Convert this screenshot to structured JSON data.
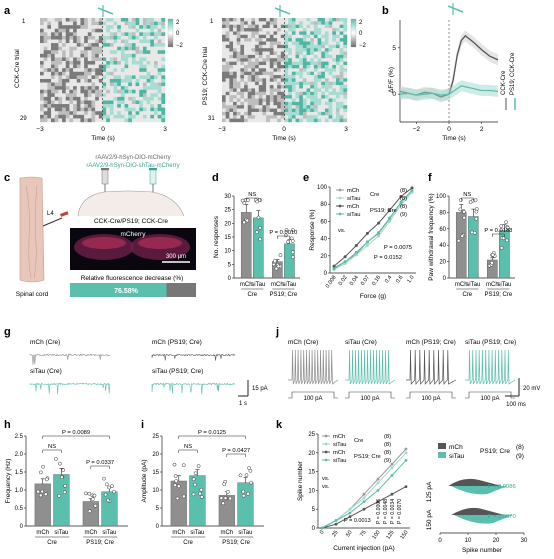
{
  "colors": {
    "grey": "#8f8f8f",
    "teal": "#5bbfae",
    "dark": "#555555",
    "lightteal": "#9ed8cc"
  },
  "panel_letters": [
    "a",
    "b",
    "c",
    "d",
    "e",
    "f",
    "g",
    "h",
    "i",
    "j",
    "k"
  ],
  "a": {
    "left_trial": "CCK-Cre trial",
    "right_trial": "PS19; CCK-Cre trial",
    "left_rows": [
      "1",
      "29"
    ],
    "right_rows": [
      "1",
      "31"
    ],
    "xticks": [
      "−3",
      "0",
      "3"
    ],
    "xlabel": "Time (s)",
    "colorbar": [
      "2",
      "0",
      "−2"
    ]
  },
  "b": {
    "ylabel": "ΔF/F (%)",
    "yticks": [
      "5",
      "0"
    ],
    "xticks": [
      "−2",
      "0",
      "2"
    ],
    "xlabel": "Time (s)",
    "legend": [
      "CCK-Cre",
      "PS19; CCK-Cre"
    ],
    "chart_data": {
      "type": "line",
      "x": [
        -3,
        -2.5,
        -2,
        -1.5,
        -1,
        -0.5,
        0,
        0.25,
        0.5,
        0.75,
        1,
        1.5,
        2,
        2.5,
        3
      ],
      "series": [
        {
          "name": "CCK-Cre",
          "values": [
            0.3,
            0.1,
            -0.1,
            0.2,
            0.1,
            -0.3,
            0,
            1.5,
            4.2,
            5.8,
            6.3,
            5.6,
            4.8,
            4.1,
            3.7
          ]
        },
        {
          "name": "PS19; CCK-Cre",
          "values": [
            0,
            0.1,
            -0.1,
            0,
            0.1,
            -0.1,
            0,
            0.3,
            0.6,
            0.9,
            0.8,
            0.6,
            0.4,
            0.4,
            0.3
          ]
        }
      ]
    }
  },
  "c": {
    "virus1": "rAAV2/9-hSyn-DIO-mCherry",
    "virus2": "rAAV2/9-hSyn-DIO-shTau-mCherry",
    "mouse": "CCK-Cre/PS19; CCK-Cre",
    "layer": "L4",
    "tissue": "Spinal cord",
    "image_label": "mCherry",
    "scale": "300 μm",
    "bar_title": "Relative fluorescence decrease (%)",
    "bar_value": "76.58%",
    "bar_fraction": 0.7658
  },
  "d": {
    "ylabel": "No. responses",
    "yticks": [
      "0",
      "5",
      "10",
      "15",
      "20",
      "25",
      "30"
    ],
    "ns": "NS",
    "p": "P = 0.0010",
    "xlabels": [
      "mCh",
      "siTau",
      "mCh",
      "siTau"
    ],
    "groups": [
      "Cre",
      "PS19; Cre"
    ],
    "chart_data": {
      "type": "bar",
      "categories": [
        "mCh Cre",
        "siTau Cre",
        "mCh PS19; Cre",
        "siTau PS19; Cre"
      ],
      "values": [
        24,
        22,
        6,
        12.5
      ],
      "ylim": [
        0,
        30
      ]
    }
  },
  "e": {
    "ylabel": "Response (%)",
    "xlabel": "Force (g)",
    "yticks": [
      "0",
      "20",
      "40",
      "60",
      "80",
      "100"
    ],
    "xticks": [
      "0.008",
      "0.02",
      "0.04",
      "0.07",
      "0.16",
      "0.4",
      "0.6",
      "1.0"
    ],
    "legend": [
      "mCh",
      "siTau",
      "mCh",
      "siTau"
    ],
    "legend_groups": [
      "Cre",
      "PS19; Cre"
    ],
    "legend_n": [
      "(8)",
      "(8)",
      "(8)",
      "(9)"
    ],
    "vs": "vs.",
    "p1": "P = 0.0075",
    "p2": "P = 0.0152",
    "chart_data": {
      "type": "line",
      "categories": [
        "0.008",
        "0.02",
        "0.04",
        "0.07",
        "0.16",
        "0.4",
        "0.6",
        "1.0"
      ],
      "series": [
        {
          "name": "mCh Cre",
          "values": [
            6,
            13,
            22,
            36,
            46,
            63,
            82,
            96
          ]
        },
        {
          "name": "siTau Cre",
          "values": [
            4,
            11,
            21,
            32,
            43,
            60,
            79,
            94
          ]
        },
        {
          "name": "mCh PS19; Cre",
          "values": [
            8,
            19,
            32,
            46,
            58,
            73,
            89,
            99
          ]
        },
        {
          "name": "siTau PS19; Cre",
          "values": [
            5,
            13,
            24,
            36,
            47,
            64,
            82,
            96
          ]
        }
      ],
      "ylim": [
        0,
        100
      ]
    }
  },
  "f": {
    "ylabel": "Paw withdrawal frequency (%)",
    "yticks": [
      "0",
      "20",
      "40",
      "60",
      "80",
      "100"
    ],
    "ns": "NS",
    "p": "P = 0.0188",
    "xlabels": [
      "mCh",
      "siTau",
      "mCh",
      "siTau"
    ],
    "groups": [
      "Cre",
      "PS19; Cre"
    ],
    "chart_data": {
      "type": "bar",
      "categories": [
        "mCh Cre",
        "siTau Cre",
        "mCh PS19; Cre",
        "siTau PS19; Cre"
      ],
      "values": [
        80,
        75,
        22,
        58
      ],
      "ylim": [
        0,
        100
      ]
    }
  },
  "g": {
    "labels": [
      "mCh (Cre)",
      "mCh (PS19; Cre)",
      "siTau (Cre)",
      "siTau (PS19; Cre)"
    ],
    "scale_v": "15 pA",
    "scale_t": "1 s"
  },
  "h": {
    "ylabel": "Frequency (Hz)",
    "yticks": [
      "0",
      "0.5",
      "1.0",
      "1.5",
      "2.0",
      "2.5"
    ],
    "ns": "NS",
    "p1": "P = 0.0089",
    "p2": "P = 0.0337",
    "xlabels": [
      "mCh",
      "siTau",
      "mCh",
      "siTau"
    ],
    "groups": [
      "Cre",
      "PS19; Cre"
    ],
    "chart_data": {
      "type": "bar",
      "categories": [
        "mCh Cre",
        "siTau Cre",
        "mCh PS19; Cre",
        "siTau PS19; Cre"
      ],
      "values": [
        1.17,
        1.43,
        0.68,
        0.95
      ],
      "ylim": [
        0,
        2.5
      ]
    }
  },
  "i": {
    "ylabel": "Amplitude (pA)",
    "yticks": [
      "0",
      "5",
      "10",
      "15",
      "20",
      "25"
    ],
    "ns": "NS",
    "p1": "P = 0.0125",
    "p2": "P = 0.0427",
    "xlabels": [
      "mCh",
      "siTau",
      "mCh",
      "siTau"
    ],
    "groups": [
      "Cre",
      "PS19; Cre"
    ],
    "chart_data": {
      "type": "bar",
      "categories": [
        "mCh Cre",
        "siTau Cre",
        "mCh PS19; Cre",
        "siTau PS19; Cre"
      ],
      "values": [
        12.5,
        14,
        8.5,
        12
      ],
      "ylim": [
        0,
        25
      ]
    }
  },
  "j": {
    "labels": [
      "mCh (Cre)",
      "siTau (Cre)",
      "mCh (PS19; Cre)",
      "siTau (PS19; Cre)"
    ],
    "step": "100 pA",
    "scale_v": "20 mV",
    "scale_t": "100 ms"
  },
  "k": {
    "ylabel": "Spike number",
    "xlabel": "Current injection (pA)",
    "yticks": [
      "0",
      "5",
      "10",
      "15",
      "20",
      "25"
    ],
    "xticks": [
      "0",
      "25",
      "50",
      "75",
      "100",
      "125",
      "150"
    ],
    "legend": [
      "mCh",
      "siTau",
      "mCh",
      "siTau"
    ],
    "legend_groups": [
      "Cre",
      "PS19; Cre"
    ],
    "legend_n": [
      "(8)",
      "(8)",
      "(8)",
      "(9)"
    ],
    "vs": "vs.",
    "pvals": [
      "P = 0.0013",
      "P = 0.0006",
      "P = 0.0048",
      "P = 0.0034",
      "P = 0.0070"
    ],
    "chart_data": {
      "type": "line",
      "x": [
        0,
        25,
        50,
        75,
        100,
        125,
        150
      ],
      "series": [
        {
          "name": "mCh Cre",
          "values": [
            0,
            2,
            5,
            9,
            13,
            17,
            21
          ]
        },
        {
          "name": "siTau Cre",
          "values": [
            0,
            2,
            5,
            8,
            12,
            16,
            20
          ]
        },
        {
          "name": "mCh PS19; Cre",
          "values": [
            0,
            1,
            3,
            5,
            7,
            9,
            11
          ]
        },
        {
          "name": "siTau PS19; Cre",
          "values": [
            0,
            2,
            4,
            7,
            10,
            14,
            18
          ]
        }
      ],
      "ylim": [
        0,
        25
      ]
    },
    "inset": {
      "legend": [
        "mCh",
        "siTau"
      ],
      "legend_group": "PS19; Cre",
      "legend_n": [
        "(8)",
        "(9)"
      ],
      "rows": [
        "125 pA",
        "150 pA"
      ],
      "p_values": [
        "P = 0.0086",
        "P = 0.0070"
      ],
      "xticks": [
        "0",
        "10",
        "20",
        "30"
      ],
      "xlabel": "Spike number"
    }
  }
}
